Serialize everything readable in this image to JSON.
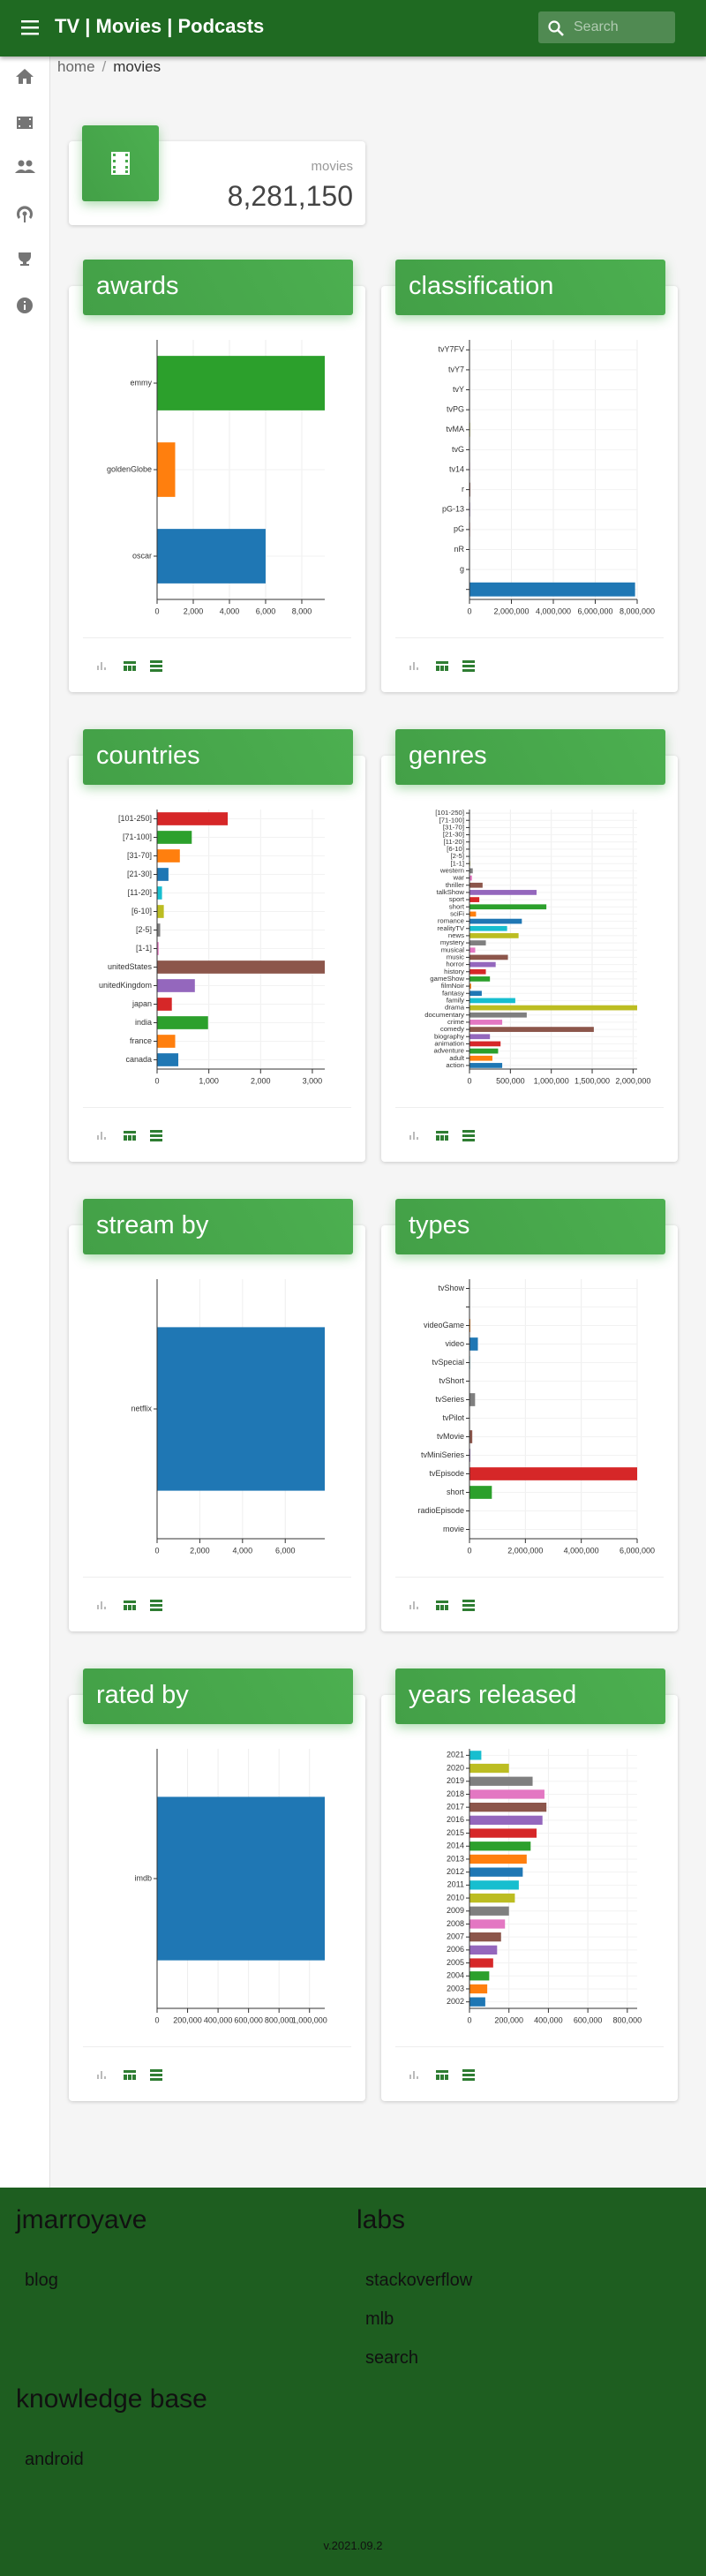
{
  "header": {
    "title": "TV | Movies | Podcasts",
    "search_placeholder": "Search"
  },
  "breadcrumb": [
    "home",
    "movies"
  ],
  "stat": {
    "label": "movies",
    "value": "8,281,150"
  },
  "palette": [
    "#1f77b4",
    "#ff7f0e",
    "#2ca02c",
    "#d62728",
    "#9467bd",
    "#8c564b",
    "#e377c2",
    "#7f7f7f",
    "#bcbd22",
    "#17becf"
  ],
  "cards": [
    {
      "title": "awards",
      "chart": {
        "type": "bar",
        "orientation": "horizontal",
        "categories": [
          "emmy",
          "goldenGlobe",
          "oscar"
        ],
        "values": [
          9270,
          1000,
          6000
        ],
        "xlim": [
          0,
          9270
        ],
        "xticks": [
          0,
          {
            "value": 2000,
            "label": "2,000"
          },
          {
            "value": 4000,
            "label": "4,000"
          },
          {
            "value": 6000,
            "label": "6,000"
          },
          {
            "value": 8000,
            "label": "8,000"
          }
        ],
        "grid": true
      }
    },
    {
      "title": "classification",
      "chart": {
        "type": "bar",
        "orientation": "horizontal",
        "categories": [
          "tvY7FV",
          "tvY7",
          "tvY",
          "tvPG",
          "tvMA",
          "tvG",
          "tv14",
          "r",
          "pG-13",
          "pG",
          "nR",
          "g",
          null
        ],
        "values": [
          2000,
          5000,
          4000,
          20000,
          30000,
          6000,
          25000,
          40000,
          30000,
          25000,
          20000,
          10000,
          7900000
        ],
        "xlim": [
          0,
          8000000
        ],
        "xticks": [
          0,
          {
            "value": 2000000,
            "label": "2,000,000"
          },
          {
            "value": 4000000,
            "label": "4,000,000"
          },
          {
            "value": 6000000,
            "label": "6,000,000"
          },
          {
            "value": 8000000,
            "label": "8,000,000"
          }
        ],
        "grid": true
      }
    },
    {
      "title": "countries",
      "chart": {
        "type": "bar",
        "orientation": "horizontal",
        "categories": [
          "[101-250]",
          "[71-100]",
          "[31-70]",
          "[21-30]",
          "[11-20]",
          "[6-10]",
          "[2-5]",
          "[1-1]",
          "unitedStates",
          "unitedKingdom",
          "japan",
          "india",
          "france",
          "canada"
        ],
        "values": [
          1365,
          670,
          440,
          220,
          95,
          130,
          60,
          30,
          3240,
          730,
          285,
          985,
          350,
          410
        ],
        "xlim": [
          0,
          3240
        ],
        "xticks": [
          0,
          {
            "value": 1000,
            "label": "1,000"
          },
          {
            "value": 2000,
            "label": "2,000"
          },
          {
            "value": 3000,
            "label": "3,000"
          }
        ],
        "grid": true
      }
    },
    {
      "title": "genres",
      "chart": {
        "type": "bar",
        "orientation": "horizontal",
        "categories": [
          "[101-250]",
          "[71-100]",
          "[31-70]",
          "[21-30]",
          "[11-20]",
          "[6-10]",
          "[2-5]",
          "[1-1]",
          "western",
          "war",
          "thriller",
          "talkShow",
          "sport",
          "short",
          "sciFi",
          "romance",
          "realityTV",
          "news",
          "mystery",
          "musical",
          "music",
          "horror",
          "history",
          "gameShow",
          "filmNoir",
          "fantasy",
          "family",
          "drama",
          "documentary",
          "crime",
          "comedy",
          "biography",
          "animation",
          "adventure",
          "adult",
          "action"
        ],
        "values": [
          2000,
          3000,
          4000,
          3000,
          5000,
          4000,
          6000,
          8000,
          40000,
          30000,
          160000,
          820000,
          120000,
          940000,
          80000,
          640000,
          460000,
          600000,
          200000,
          70000,
          470000,
          320000,
          200000,
          250000,
          20000,
          150000,
          560000,
          2050000,
          700000,
          400000,
          1520000,
          250000,
          380000,
          350000,
          280000,
          400000
        ],
        "xlim": [
          0,
          2050000
        ],
        "xticks": [
          0,
          {
            "value": 500000,
            "label": "500,000"
          },
          {
            "value": 1000000,
            "label": "1,000,000"
          },
          {
            "value": 1500000,
            "label": "1,500,000"
          },
          {
            "value": 2000000,
            "label": "2,000,000"
          }
        ],
        "grid": true
      }
    },
    {
      "title": "stream by",
      "chart": {
        "type": "bar",
        "orientation": "horizontal",
        "categories": [
          "netflix"
        ],
        "values": [
          7850
        ],
        "xlim": [
          0,
          7850
        ],
        "xticks": [
          0,
          {
            "value": 2000,
            "label": "2,000"
          },
          {
            "value": 4000,
            "label": "4,000"
          },
          {
            "value": 6000,
            "label": "6,000"
          }
        ],
        "grid": true
      }
    },
    {
      "title": "types",
      "chart": {
        "type": "bar",
        "orientation": "horizontal",
        "categories": [
          "tvShow",
          null,
          "videoGame",
          "video",
          "tvSpecial",
          "tvShort",
          "tvSeries",
          "tvPilot",
          "tvMovie",
          "tvMiniSeries",
          "tvEpisode",
          "short",
          "radioEpisode",
          "movie"
        ],
        "values": [
          2000,
          0,
          30000,
          300000,
          20000,
          15000,
          200000,
          5000,
          100000,
          30000,
          6000000,
          800000,
          3000,
          10000
        ],
        "xlim": [
          0,
          6000000
        ],
        "xticks": [
          0,
          {
            "value": 2000000,
            "label": "2,000,000"
          },
          {
            "value": 4000000,
            "label": "4,000,000"
          },
          {
            "value": 6000000,
            "label": "6,000,000"
          }
        ],
        "grid": true
      }
    },
    {
      "title": "rated by",
      "chart": {
        "type": "bar",
        "orientation": "horizontal",
        "categories": [
          "imdb"
        ],
        "values": [
          1100000
        ],
        "xlim": [
          0,
          1100000
        ],
        "xticks": [
          0,
          {
            "value": 200000,
            "label": "200,000"
          },
          {
            "value": 400000,
            "label": "400,000"
          },
          {
            "value": 600000,
            "label": "600,000"
          },
          {
            "value": 800000,
            "label": "800,000"
          },
          {
            "value": 1000000,
            "label": "1,000,000"
          }
        ],
        "grid": true
      }
    },
    {
      "title": "years released",
      "chart": {
        "type": "bar",
        "orientation": "horizontal",
        "categories": [
          "2021",
          "2020",
          "2019",
          "2018",
          "2017",
          "2016",
          "2015",
          "2014",
          "2013",
          "2012",
          "2011",
          "2010",
          "2009",
          "2008",
          "2007",
          "2006",
          "2005",
          "2004",
          "2003",
          "2002"
        ],
        "values": [
          60000,
          200000,
          320000,
          380000,
          390000,
          370000,
          340000,
          310000,
          290000,
          270000,
          250000,
          230000,
          200000,
          180000,
          160000,
          140000,
          120000,
          100000,
          90000,
          80000
        ],
        "xlim": [
          0,
          850000
        ],
        "xticks": [
          0,
          {
            "value": 200000,
            "label": "200,000"
          },
          {
            "value": 400000,
            "label": "400,000"
          },
          {
            "value": 600000,
            "label": "600,000"
          },
          {
            "value": 800000,
            "label": "800,000"
          }
        ],
        "grid": true
      }
    }
  ],
  "footer": {
    "sections": [
      {
        "title": "jmarroyave",
        "links": [
          "blog"
        ]
      },
      {
        "title": "labs",
        "links": [
          "stackoverflow",
          "mlb",
          "search"
        ]
      },
      {
        "title": "knowledge base",
        "links": [
          "android"
        ]
      }
    ],
    "version": "v.2021.09.2"
  }
}
